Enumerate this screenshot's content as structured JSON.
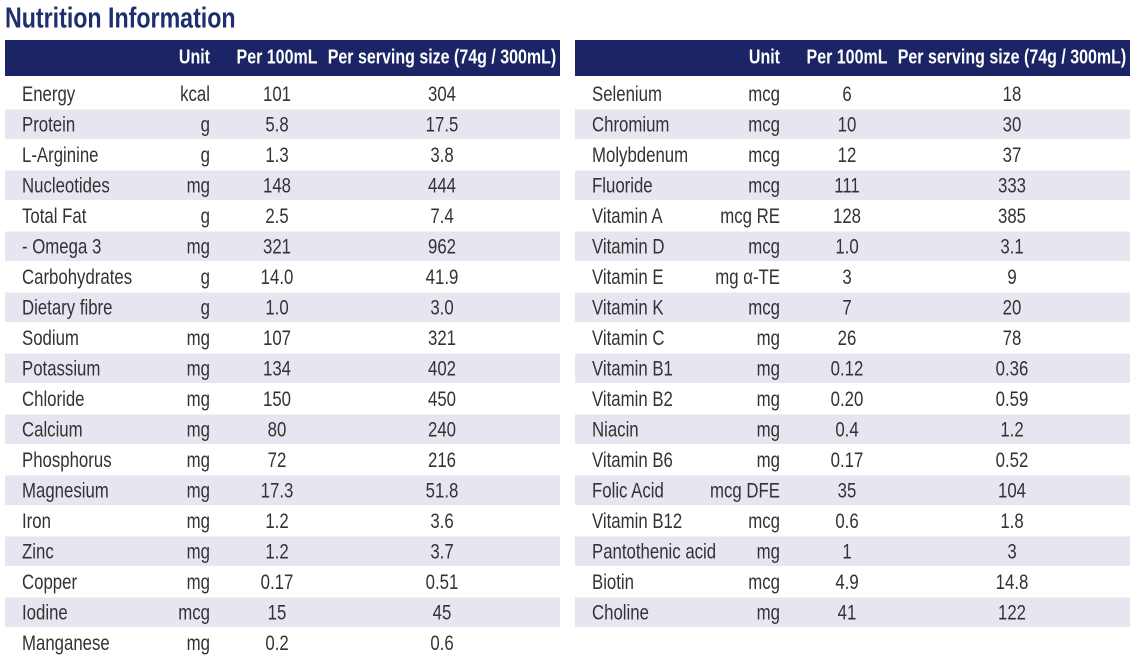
{
  "title": "Nutrition Information",
  "tables": [
    {
      "header": {
        "unit": "Unit",
        "per_100ml": "Per 100mL",
        "per_serving": "Per serving size (74g / 300mL)"
      },
      "rows": [
        [
          "Energy",
          "kcal",
          "101",
          "304"
        ],
        [
          "Protein",
          "g",
          "5.8",
          "17.5"
        ],
        [
          "L-Arginine",
          "g",
          "1.3",
          "3.8"
        ],
        [
          "Nucleotides",
          "mg",
          "148",
          "444"
        ],
        [
          "Total Fat",
          "g",
          "2.5",
          "7.4"
        ],
        [
          "- Omega 3",
          "mg",
          "321",
          "962"
        ],
        [
          "Carbohydrates",
          "g",
          "14.0",
          "41.9"
        ],
        [
          "Dietary fibre",
          "g",
          "1.0",
          "3.0"
        ],
        [
          "Sodium",
          "mg",
          "107",
          "321"
        ],
        [
          "Potassium",
          "mg",
          "134",
          "402"
        ],
        [
          "Chloride",
          "mg",
          "150",
          "450"
        ],
        [
          "Calcium",
          "mg",
          "80",
          "240"
        ],
        [
          "Phosphorus",
          "mg",
          "72",
          "216"
        ],
        [
          "Magnesium",
          "mg",
          "17.3",
          "51.8"
        ],
        [
          "Iron",
          "mg",
          "1.2",
          "3.6"
        ],
        [
          "Zinc",
          "mg",
          "1.2",
          "3.7"
        ],
        [
          "Copper",
          "mg",
          "0.17",
          "0.51"
        ],
        [
          "Iodine",
          "mcg",
          "15",
          "45"
        ],
        [
          "Manganese",
          "mg",
          "0.2",
          "0.6"
        ]
      ]
    },
    {
      "header": {
        "unit": "Unit",
        "per_100ml": "Per 100mL",
        "per_serving": "Per serving size (74g / 300mL)"
      },
      "rows": [
        [
          "Selenium",
          "mcg",
          "6",
          "18"
        ],
        [
          "Chromium",
          "mcg",
          "10",
          "30"
        ],
        [
          "Molybdenum",
          "mcg",
          "12",
          "37"
        ],
        [
          "Fluoride",
          "mcg",
          "111",
          "333"
        ],
        [
          "Vitamin A",
          "mcg RE",
          "128",
          "385"
        ],
        [
          "Vitamin D",
          "mcg",
          "1.0",
          "3.1"
        ],
        [
          "Vitamin E",
          "mg α-TE",
          "3",
          "9"
        ],
        [
          "Vitamin K",
          "mcg",
          "7",
          "20"
        ],
        [
          "Vitamin C",
          "mg",
          "26",
          "78"
        ],
        [
          "Vitamin B1",
          "mg",
          "0.12",
          "0.36"
        ],
        [
          "Vitamin B2",
          "mg",
          "0.20",
          "0.59"
        ],
        [
          "Niacin",
          "mg",
          "0.4",
          "1.2"
        ],
        [
          "Vitamin B6",
          "mg",
          "0.17",
          "0.52"
        ],
        [
          "Folic Acid",
          "mcg DFE",
          "35",
          "104"
        ],
        [
          "Vitamin B12",
          "mcg",
          "0.6",
          "1.8"
        ],
        [
          "Pantothenic acid",
          "mg",
          "1",
          "3"
        ],
        [
          "Biotin",
          "mcg",
          "4.9",
          "14.8"
        ],
        [
          "Choline",
          "mg",
          "41",
          "122"
        ]
      ]
    }
  ]
}
